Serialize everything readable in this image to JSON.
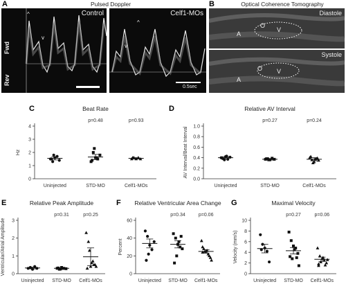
{
  "panelA": {
    "label": "A",
    "title": "Pulsed Doppler",
    "control_label": "Control",
    "mo_label": "Celf1-MOs",
    "fwd": "Fwd",
    "rev": "Rev",
    "e_marker": "^",
    "a_marker": "v",
    "scale_label": "0.5sec"
  },
  "panelB": {
    "label": "B",
    "title": "Optical Coherence Tomography",
    "diastole": "Diastole",
    "systole": "Systole",
    "letter_a": "A",
    "letter_o": "O",
    "letter_v": "V"
  },
  "chart_data": [
    {
      "id": "C",
      "type": "scatter",
      "title": "Beat Rate",
      "ylabel": "Hz",
      "categories": [
        "Uninjected",
        "STD-MO",
        "Celf1-MOs"
      ],
      "ylim": [
        0,
        4
      ],
      "yticks": [
        0,
        1,
        2,
        3,
        4
      ],
      "pvalues": [
        "",
        "p=0.48",
        "p=0.93"
      ],
      "points": [
        [
          1.5,
          1.3,
          1.6,
          1.7,
          1.4,
          1.5,
          1.8
        ],
        [
          1.3,
          2.0,
          1.6,
          1.5,
          1.8,
          1.4,
          2.3,
          1.6
        ],
        [
          1.5,
          1.6,
          1.5,
          1.6,
          1.5,
          1.6
        ]
      ],
      "means": [
        1.55,
        1.65,
        1.55
      ],
      "sem": [
        0.12,
        0.2,
        0.05
      ]
    },
    {
      "id": "D",
      "type": "scatter",
      "title": "Relative AV Interval",
      "ylabel": "AV Interval/Beat Interval",
      "categories": [
        "Uninjected",
        "STD-MO",
        "Celf1-MOs"
      ],
      "ylim": [
        0,
        1.0
      ],
      "yticks": [
        0.0,
        0.2,
        0.4,
        0.6,
        0.8,
        1.0
      ],
      "pvalues": [
        "",
        "p=0.27",
        "p=0.24"
      ],
      "points": [
        [
          0.4,
          0.38,
          0.42,
          0.37,
          0.41,
          0.39,
          0.36,
          0.43
        ],
        [
          0.37,
          0.38,
          0.36,
          0.39,
          0.37,
          0.38,
          0.36
        ],
        [
          0.4,
          0.36,
          0.32,
          0.38,
          0.35,
          0.42,
          0.3,
          0.37,
          0.39
        ]
      ],
      "means": [
        0.4,
        0.37,
        0.37
      ],
      "sem": [
        0.02,
        0.015,
        0.03
      ]
    },
    {
      "id": "E",
      "type": "scatter",
      "title": "Relative Peak Amplitude",
      "ylabel": "Ventricular/Atrial Amplitude",
      "categories": [
        "Uninjected",
        "STD-MO",
        "Celf1-MOs"
      ],
      "ylim": [
        0,
        3
      ],
      "yticks": [
        0,
        1,
        2,
        3
      ],
      "pvalues": [
        "",
        "p=0.31",
        "p=0.25"
      ],
      "points": [
        [
          0.3,
          0.35,
          0.25,
          0.4,
          0.3
        ],
        [
          0.3,
          0.25,
          0.35,
          0.3,
          0.28,
          0.32,
          0.26,
          0.3
        ],
        [
          2.3,
          1.8,
          0.4,
          0.7,
          0.5,
          0.3,
          1.3,
          0.6,
          0.5,
          0.4
        ]
      ],
      "means": [
        0.32,
        0.3,
        0.95
      ],
      "sem": [
        0.05,
        0.03,
        0.5
      ]
    },
    {
      "id": "F",
      "type": "scatter",
      "title": "Relative Ventricular Area Change",
      "ylabel": "Percent",
      "categories": [
        "Uninjected",
        "STD-MO",
        "Celf1-MOs"
      ],
      "ylim": [
        0,
        60
      ],
      "yticks": [
        0,
        20,
        40,
        60
      ],
      "pvalues": [
        "",
        "p=0.34",
        "p=0.06"
      ],
      "points": [
        [
          48,
          42,
          32,
          27,
          36,
          15,
          22
        ],
        [
          45,
          40,
          33,
          30,
          28,
          12,
          20,
          36,
          42
        ],
        [
          37,
          28,
          25,
          22,
          18,
          30,
          25,
          26,
          20,
          15,
          24
        ]
      ],
      "means": [
        34,
        33,
        25
      ],
      "sem": [
        5,
        4,
        2
      ]
    },
    {
      "id": "G",
      "type": "scatter",
      "title": "Maximal Velocity",
      "ylabel": "Velocity (mm/s)",
      "categories": [
        "Uninjected",
        "STD-MO",
        "Celf1-MOs"
      ],
      "ylim": [
        0,
        10
      ],
      "yticks": [
        0,
        2,
        4,
        6,
        8,
        10
      ],
      "pvalues": [
        "",
        "p=0.27",
        "p=0.06"
      ],
      "points": [
        [
          7.3,
          5.5,
          4.8,
          4.2,
          2.2,
          4.5
        ],
        [
          7.8,
          6.2,
          5.2,
          4.8,
          3.8,
          3.2,
          2.8,
          4.5,
          3.0,
          1.5
        ],
        [
          4.8,
          3.3,
          2.8,
          2.5,
          2.0,
          1.8,
          2.2,
          3.0,
          1.6,
          2.6,
          1.5
        ]
      ],
      "means": [
        4.7,
        4.3,
        2.7
      ],
      "sem": [
        0.8,
        0.6,
        0.4
      ]
    }
  ]
}
